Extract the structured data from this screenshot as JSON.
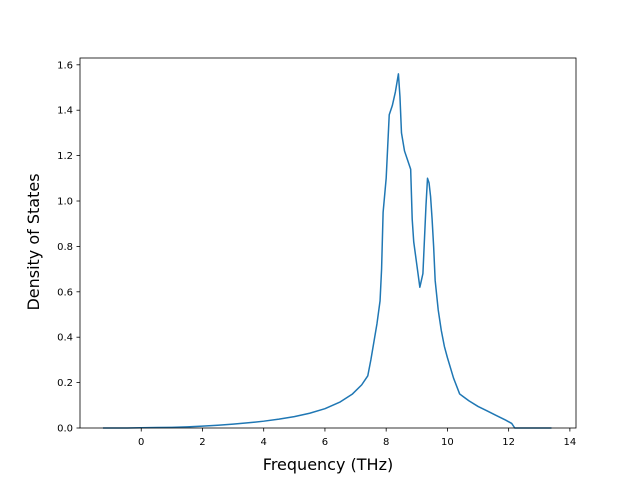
{
  "chart_data": {
    "type": "line",
    "title": "",
    "xlabel": "Frequency (THz)",
    "ylabel": "Density of States",
    "xlim": [
      -2,
      14.2
    ],
    "ylim": [
      0,
      1.63
    ],
    "x_ticks": [
      0,
      2,
      4,
      6,
      8,
      10,
      12,
      14
    ],
    "y_ticks": [
      0.0,
      0.2,
      0.4,
      0.6,
      0.8,
      1.0,
      1.2,
      1.4,
      1.6
    ],
    "x_tick_labels": [
      "0",
      "2",
      "4",
      "6",
      "8",
      "10",
      "12",
      "14"
    ],
    "y_tick_labels": [
      "0.0",
      "0.2",
      "0.4",
      "0.6",
      "0.8",
      "1.0",
      "1.2",
      "1.4",
      "1.6"
    ],
    "grid": false,
    "color": "#1f77b4",
    "series": [
      {
        "x": [
          -1.25,
          -0.5,
          0.0,
          0.5,
          1.0,
          1.5,
          2.0,
          2.5,
          3.0,
          3.5,
          4.0,
          4.5,
          5.0,
          5.5,
          6.0,
          6.5,
          6.9,
          7.2,
          7.4,
          7.5,
          7.6,
          7.7,
          7.8,
          7.85,
          7.9,
          8.0,
          8.1,
          8.2,
          8.3,
          8.4,
          8.45,
          8.5,
          8.6,
          8.7,
          8.8,
          8.85,
          8.9,
          9.0,
          9.1,
          9.15,
          9.2,
          9.3,
          9.35,
          9.4,
          9.45,
          9.5,
          9.55,
          9.6,
          9.7,
          9.8,
          9.9,
          10.0,
          10.2,
          10.4,
          10.5,
          10.7,
          11.0,
          11.3,
          11.6,
          11.9,
          12.1,
          12.2,
          13.4
        ],
        "y": [
          0.0,
          0.0,
          0.001,
          0.002,
          0.003,
          0.005,
          0.008,
          0.012,
          0.017,
          0.023,
          0.03,
          0.039,
          0.05,
          0.065,
          0.085,
          0.115,
          0.15,
          0.19,
          0.23,
          0.3,
          0.38,
          0.46,
          0.56,
          0.7,
          0.95,
          1.1,
          1.38,
          1.42,
          1.48,
          1.56,
          1.46,
          1.3,
          1.22,
          1.18,
          1.14,
          0.92,
          0.82,
          0.72,
          0.62,
          0.65,
          0.68,
          0.98,
          1.1,
          1.08,
          1.02,
          0.92,
          0.8,
          0.65,
          0.52,
          0.43,
          0.36,
          0.31,
          0.22,
          0.15,
          0.14,
          0.12,
          0.095,
          0.075,
          0.055,
          0.035,
          0.02,
          0.0,
          0.0
        ]
      }
    ]
  }
}
